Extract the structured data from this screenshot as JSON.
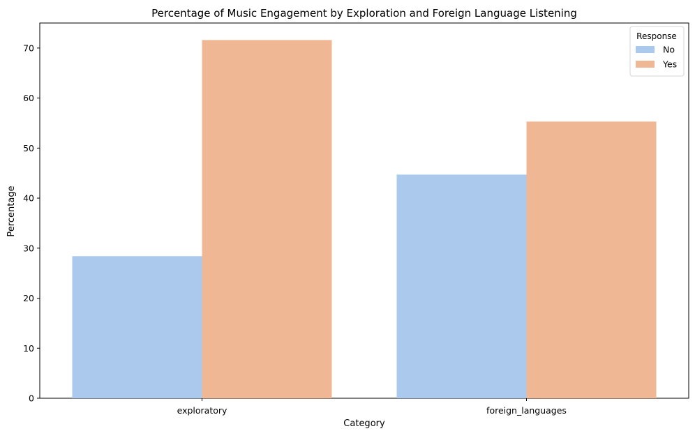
{
  "chart_data": {
    "type": "bar",
    "title": "Percentage of Music Engagement by Exploration and Foreign Language Listening",
    "xlabel": "Category",
    "ylabel": "Percentage",
    "categories": [
      "exploratory",
      "foreign_languages"
    ],
    "series": [
      {
        "name": "No",
        "values": [
          28.4,
          44.7
        ],
        "color": "#abc9ed"
      },
      {
        "name": "Yes",
        "values": [
          71.6,
          55.3
        ],
        "color": "#f0b794"
      }
    ],
    "ylim": [
      0,
      75
    ],
    "yticks": [
      0,
      10,
      20,
      30,
      40,
      50,
      60,
      70
    ],
    "grid": false,
    "legend": {
      "title": "Response",
      "placement": "top-right"
    }
  }
}
